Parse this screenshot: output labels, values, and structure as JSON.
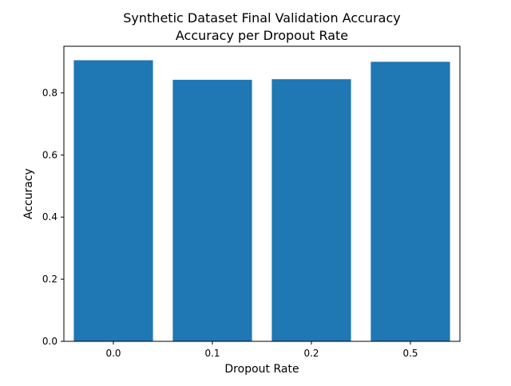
{
  "chart_data": {
    "type": "bar",
    "title": "Synthetic Dataset Final Validation Accuracy",
    "subtitle": "Accuracy per Dropout Rate",
    "xlabel": "Dropout Rate",
    "ylabel": "Accuracy",
    "categories": [
      "0.0",
      "0.1",
      "0.2",
      "0.5"
    ],
    "values": [
      0.905,
      0.842,
      0.844,
      0.9
    ],
    "ylim": [
      0,
      0.95
    ],
    "yticks": [
      0.0,
      0.2,
      0.4,
      0.6,
      0.8
    ],
    "ytick_labels": [
      "0.0",
      "0.2",
      "0.4",
      "0.6",
      "0.8"
    ],
    "grid": false,
    "bar_color": "#1f77b4"
  }
}
